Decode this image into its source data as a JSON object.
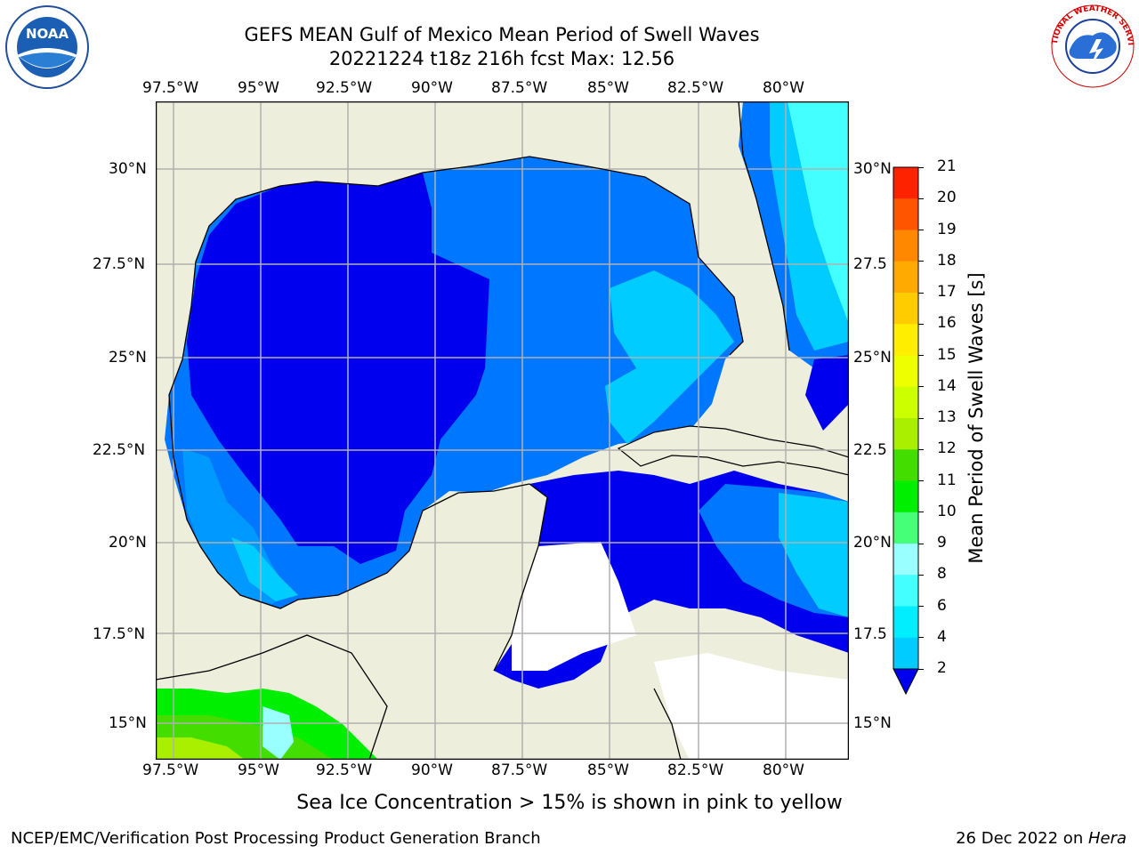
{
  "title": {
    "line1": "GEFS MEAN Gulf of Mexico Mean Period of Swell Waves",
    "line2": "20221224 t18z 216h fcst   Max: 12.56"
  },
  "axes": {
    "lon_labels": [
      "97.5°W",
      "95°W",
      "92.5°W",
      "90°W",
      "87.5°W",
      "85°W",
      "82.5°W",
      "80°W"
    ],
    "lat_labels_left": [
      "30°N",
      "27.5°N",
      "25°N",
      "22.5°N",
      "20°N",
      "17.5°N",
      "15°N"
    ],
    "lat_labels_right": [
      "30°N",
      "27.5",
      "25°N",
      "22.5",
      "20°N",
      "17.5",
      "15°N"
    ]
  },
  "colorbar": {
    "title": "Mean Period of Swell Waves [s]",
    "ticks": [
      "2",
      "4",
      "6",
      "8",
      "9",
      "10",
      "11",
      "12",
      "13",
      "14",
      "15",
      "16",
      "17",
      "18",
      "19",
      "20",
      "21"
    ],
    "colors": [
      "#0077ff",
      "#00ccff",
      "#00eeff",
      "#44ffff",
      "#99ffff",
      "#44ff77",
      "#00ee00",
      "#44dd00",
      "#aaee00",
      "#ccff00",
      "#eeff00",
      "#ffee00",
      "#ffcc00",
      "#ffaa00",
      "#ff8800",
      "#ff5500",
      "#ff2200",
      "#ff0000"
    ],
    "extend_color": "#0000ee"
  },
  "colors": {
    "land": "#eeeedd",
    "period_2_4": "#0000ee",
    "period_4_6": "#0077ff",
    "period_6_8": "#0099ff",
    "period_8_9": "#00ccff",
    "period_9_10": "#44ffff",
    "green": "#00ee00"
  },
  "note": "Sea Ice Concentration > 15% is shown in pink to yellow",
  "footer": {
    "left": "NCEP/EMC/Verification Post Processing Product Generation Branch",
    "right_date": "26 Dec 2022 on ",
    "right_machine": "Hera"
  },
  "logos": {
    "noaa": "NOAA",
    "nws": "NATIONAL WEATHER SERVICE"
  }
}
